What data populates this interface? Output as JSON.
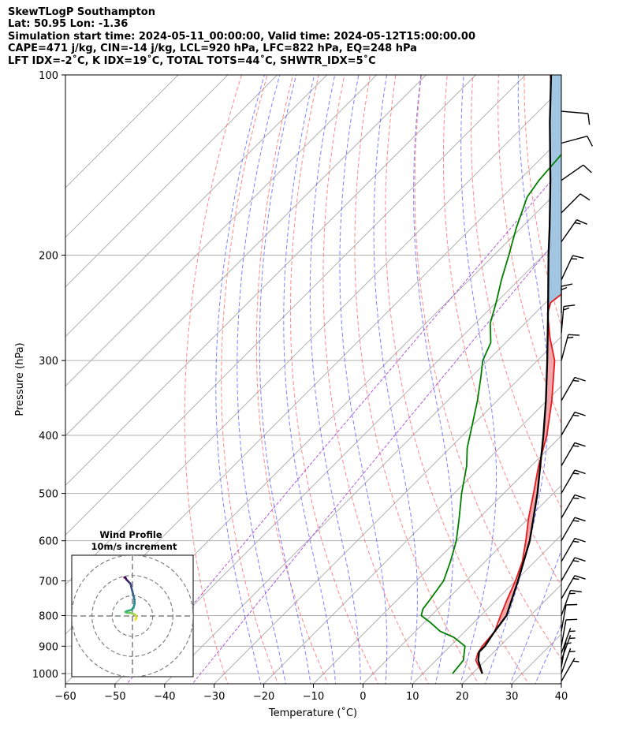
{
  "header": {
    "lines": [
      "SkewTLogP Southampton",
      "Lat: 50.95   Lon: -1.36",
      "Simulation start time: 2024-05-11_00:00:00, Valid time: 2024-05-12T15:00:00.00",
      "CAPE=471 j/kg, CIN=-14 j/kg, LCL=920 hPa, LFC=822 hPa, EQ=248 hPa",
      "LFT IDX=-2$^\\circ$C, K IDX=19$^\\circ$C, TOTAL TOTS=44$^\\circ$C, SHWTR_IDX=5$^\\circ$C"
    ]
  },
  "chart_data": {
    "type": "line",
    "title": "SkewTLogP Southampton",
    "xlabel": "Temperature ($^\\circ$C)",
    "ylabel": "Pressure (hPa)",
    "xlim": [
      -60,
      40
    ],
    "ylim": [
      1040,
      100
    ],
    "x_ticks": [
      -60,
      -50,
      -40,
      -30,
      -20,
      -10,
      0,
      10,
      20,
      30,
      40
    ],
    "y_ticks": [
      100,
      200,
      300,
      400,
      500,
      600,
      700,
      800,
      900,
      1000
    ],
    "y_scale": "log",
    "skew": "45 degrees",
    "grid": true,
    "colors": {
      "temperature": "#e41a1c",
      "dewpoint": "#008000",
      "parcel": "#000000",
      "cape_fill": "#f4a3a8",
      "cin_fill": "#9ec3e0",
      "dry_adiabats": "#ff6060",
      "moist_adiabats": "#6060ff",
      "mixing_ratio": "#9932cc",
      "grid": "#b0b0b0"
    },
    "series": [
      {
        "name": "temperature",
        "points": [
          [
            1000,
            22
          ],
          [
            950,
            18
          ],
          [
            925,
            17
          ],
          [
            900,
            16.5
          ],
          [
            850,
            16
          ],
          [
            800,
            14
          ],
          [
            750,
            12
          ],
          [
            700,
            10
          ],
          [
            650,
            7.5
          ],
          [
            600,
            4
          ],
          [
            550,
            0
          ],
          [
            500,
            -4
          ],
          [
            450,
            -8.5
          ],
          [
            400,
            -13
          ],
          [
            350,
            -19
          ],
          [
            300,
            -26.5
          ],
          [
            275,
            -32
          ],
          [
            250,
            -37.5
          ],
          [
            240,
            -39
          ],
          [
            225,
            -38
          ],
          [
            200,
            -37
          ],
          [
            180,
            -37
          ],
          [
            160,
            -37.5
          ],
          [
            150,
            -38.5
          ],
          [
            140,
            -39.5
          ],
          [
            130,
            -40.5
          ],
          [
            120,
            -42
          ],
          [
            110,
            -43.5
          ],
          [
            100,
            -45
          ]
        ]
      },
      {
        "name": "dewpoint",
        "points": [
          [
            1000,
            16
          ],
          [
            950,
            15.5
          ],
          [
            900,
            13
          ],
          [
            870,
            9
          ],
          [
            850,
            5
          ],
          [
            820,
            1
          ],
          [
            800,
            -2
          ],
          [
            780,
            -3
          ],
          [
            750,
            -3.5
          ],
          [
            700,
            -4.5
          ],
          [
            650,
            -7
          ],
          [
            600,
            -10
          ],
          [
            550,
            -14
          ],
          [
            500,
            -18.5
          ],
          [
            450,
            -23
          ],
          [
            420,
            -26.5
          ],
          [
            400,
            -28.5
          ],
          [
            350,
            -34
          ],
          [
            320,
            -38
          ],
          [
            300,
            -41
          ],
          [
            280,
            -43
          ],
          [
            260,
            -47
          ],
          [
            240,
            -50
          ],
          [
            220,
            -53.5
          ],
          [
            200,
            -57
          ],
          [
            180,
            -61
          ],
          [
            160,
            -65
          ],
          [
            150,
            -66
          ],
          [
            130,
            -67
          ],
          [
            115,
            -68
          ],
          [
            100,
            -70
          ]
        ]
      },
      {
        "name": "parcel",
        "points": [
          [
            1000,
            22
          ],
          [
            950,
            18.5
          ],
          [
            920,
            17
          ],
          [
            900,
            17
          ],
          [
            850,
            16
          ],
          [
            800,
            15.2
          ],
          [
            700,
            10.5
          ],
          [
            600,
            4.8
          ],
          [
            500,
            -3.2
          ],
          [
            400,
            -13.7
          ],
          [
            350,
            -20.2
          ],
          [
            300,
            -28
          ],
          [
            250,
            -37.4
          ],
          [
            200,
            -49
          ],
          [
            180,
            -54.3
          ],
          [
            150,
            -63.7
          ],
          [
            120,
            -75.5
          ],
          [
            100,
            -84.8
          ]
        ]
      }
    ],
    "inset": {
      "title": "Wind Profile",
      "subtitle": "10m/s increment",
      "rings_mps": [
        10,
        20,
        30
      ],
      "hodograph": [
        [
          1.5,
          -2
        ],
        [
          2,
          -1
        ],
        [
          1.5,
          0.5
        ],
        [
          0.5,
          1
        ],
        [
          -1,
          1.5
        ],
        [
          -2.5,
          1.5
        ],
        [
          -3.5,
          2
        ],
        [
          -2.5,
          2.5
        ],
        [
          -0.5,
          3
        ],
        [
          0.5,
          4
        ],
        [
          1,
          6
        ],
        [
          1,
          8
        ],
        [
          0.5,
          10
        ],
        [
          0,
          12
        ],
        [
          -0.5,
          14
        ],
        [
          -1,
          16
        ],
        [
          -2,
          17
        ],
        [
          -3,
          18
        ],
        [
          -3.5,
          19
        ],
        [
          -4,
          19
        ]
      ]
    },
    "wind_barbs": [
      {
        "p": 1030,
        "speed_kt": 5,
        "dir": 210
      },
      {
        "p": 1000,
        "speed_kt": 5,
        "dir": 200
      },
      {
        "p": 975,
        "speed_kt": 5,
        "dir": 190
      },
      {
        "p": 950,
        "speed_kt": 5,
        "dir": 200
      },
      {
        "p": 925,
        "speed_kt": 5,
        "dir": 200
      },
      {
        "p": 900,
        "speed_kt": 10,
        "dir": 190
      },
      {
        "p": 850,
        "speed_kt": 10,
        "dir": 190
      },
      {
        "p": 800,
        "speed_kt": 15,
        "dir": 200
      },
      {
        "p": 750,
        "speed_kt": 15,
        "dir": 210
      },
      {
        "p": 700,
        "speed_kt": 15,
        "dir": 210
      },
      {
        "p": 650,
        "speed_kt": 15,
        "dir": 210
      },
      {
        "p": 600,
        "speed_kt": 15,
        "dir": 210
      },
      {
        "p": 550,
        "speed_kt": 15,
        "dir": 210
      },
      {
        "p": 500,
        "speed_kt": 15,
        "dir": 210
      },
      {
        "p": 450,
        "speed_kt": 15,
        "dir": 210
      },
      {
        "p": 400,
        "speed_kt": 15,
        "dir": 210
      },
      {
        "p": 350,
        "speed_kt": 15,
        "dir": 210
      },
      {
        "p": 300,
        "speed_kt": 15,
        "dir": 195
      },
      {
        "p": 270,
        "speed_kt": 15,
        "dir": 185
      },
      {
        "p": 250,
        "speed_kt": 15,
        "dir": 180
      },
      {
        "p": 220,
        "speed_kt": 15,
        "dir": 205
      },
      {
        "p": 190,
        "speed_kt": 15,
        "dir": 215
      },
      {
        "p": 170,
        "speed_kt": 10,
        "dir": 225
      },
      {
        "p": 150,
        "speed_kt": 10,
        "dir": 235
      },
      {
        "p": 130,
        "speed_kt": 10,
        "dir": 255
      },
      {
        "p": 115,
        "speed_kt": 10,
        "dir": 275
      }
    ]
  }
}
